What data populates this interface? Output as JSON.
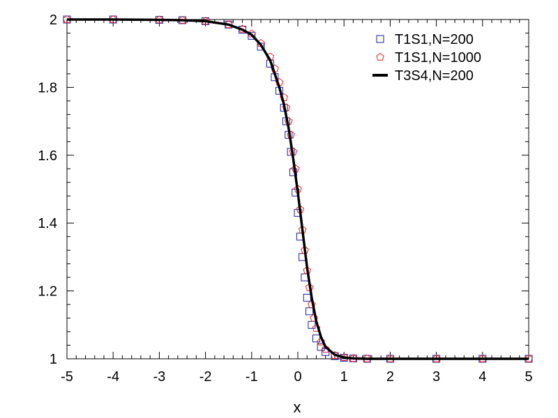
{
  "chart_data": {
    "type": "line",
    "title": "",
    "xlabel": "x",
    "ylabel": "",
    "xlim": [
      -5,
      5
    ],
    "ylim": [
      1,
      2
    ],
    "x_ticks": [
      -5,
      -4,
      -3,
      -2,
      -1,
      0,
      1,
      2,
      3,
      4,
      5
    ],
    "y_ticks": [
      1,
      1.2,
      1.4,
      1.6,
      1.8,
      2
    ],
    "x_tick_labels": [
      "-5",
      "-4",
      "-3",
      "-2",
      "-1",
      "0",
      "1",
      "2",
      "3",
      "4",
      "5"
    ],
    "y_tick_labels": [
      "1",
      "1.2",
      "1.4",
      "1.6",
      "1.8",
      "2"
    ],
    "grid": false,
    "legend_position": "top-right",
    "series": [
      {
        "name": "T1S1,N=200",
        "marker": "square",
        "color": "#1a1aa0",
        "x": [
          -5,
          -4,
          -3,
          -2.5,
          -2,
          -1.5,
          -1.2,
          -1,
          -0.8,
          -0.6,
          -0.5,
          -0.4,
          -0.3,
          -0.25,
          -0.2,
          -0.15,
          -0.1,
          -0.05,
          0,
          0.05,
          0.1,
          0.15,
          0.2,
          0.25,
          0.3,
          0.4,
          0.5,
          0.6,
          0.8,
          1,
          1.2,
          1.5,
          2,
          3,
          4,
          5
        ],
        "y": [
          2.0,
          2.0,
          1.999,
          1.998,
          1.995,
          1.985,
          1.97,
          1.952,
          1.92,
          1.87,
          1.83,
          1.79,
          1.74,
          1.7,
          1.66,
          1.61,
          1.55,
          1.49,
          1.43,
          1.36,
          1.3,
          1.24,
          1.18,
          1.14,
          1.1,
          1.06,
          1.035,
          1.02,
          1.008,
          1.003,
          1.001,
          1.0,
          1.0,
          1.0,
          1.0,
          1.0
        ]
      },
      {
        "name": "T1S1,N=1000",
        "marker": "pentagon",
        "color": "#e8201c",
        "x": [
          -5,
          -4,
          -3,
          -2.5,
          -2,
          -1.5,
          -1.2,
          -1,
          -0.8,
          -0.6,
          -0.5,
          -0.4,
          -0.3,
          -0.25,
          -0.2,
          -0.15,
          -0.1,
          -0.05,
          0,
          0.05,
          0.1,
          0.15,
          0.2,
          0.25,
          0.3,
          0.35,
          0.4,
          0.5,
          0.6,
          0.8,
          1,
          1.2,
          1.5,
          2,
          3,
          4,
          5
        ],
        "y": [
          2.0,
          2.0,
          1.999,
          1.998,
          1.995,
          1.985,
          1.972,
          1.958,
          1.93,
          1.89,
          1.855,
          1.815,
          1.77,
          1.74,
          1.7,
          1.66,
          1.61,
          1.56,
          1.5,
          1.44,
          1.38,
          1.32,
          1.26,
          1.21,
          1.16,
          1.12,
          1.09,
          1.05,
          1.028,
          1.01,
          1.004,
          1.001,
          1.0,
          1.0,
          1.0,
          1.0,
          1.0
        ]
      },
      {
        "name": "T3S4,N=200",
        "marker": "line",
        "color": "#000000",
        "x": [
          -5,
          -4,
          -3,
          -2.5,
          -2,
          -1.5,
          -1.2,
          -1,
          -0.8,
          -0.6,
          -0.5,
          -0.4,
          -0.3,
          -0.2,
          -0.1,
          0,
          0.1,
          0.2,
          0.3,
          0.4,
          0.5,
          0.6,
          0.8,
          1,
          1.2,
          1.5,
          2,
          3,
          4,
          5
        ],
        "y": [
          2.0,
          2.0,
          1.999,
          1.998,
          1.995,
          1.985,
          1.97,
          1.955,
          1.925,
          1.88,
          1.84,
          1.8,
          1.75,
          1.68,
          1.59,
          1.49,
          1.38,
          1.27,
          1.18,
          1.11,
          1.065,
          1.035,
          1.012,
          1.004,
          1.001,
          1.0,
          1.0,
          1.0,
          1.0,
          1.0
        ]
      }
    ]
  }
}
